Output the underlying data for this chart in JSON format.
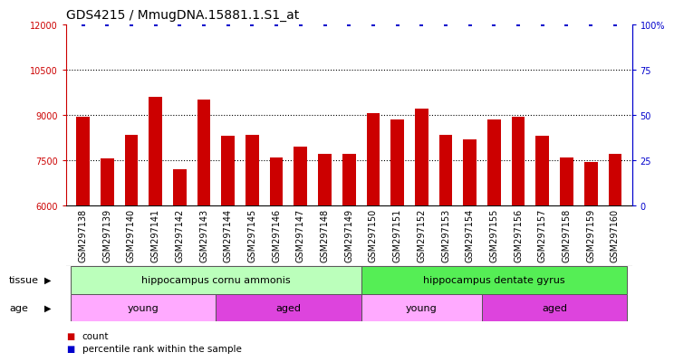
{
  "title": "GDS4215 / MmugDNA.15881.1.S1_at",
  "samples": [
    "GSM297138",
    "GSM297139",
    "GSM297140",
    "GSM297141",
    "GSM297142",
    "GSM297143",
    "GSM297144",
    "GSM297145",
    "GSM297146",
    "GSM297147",
    "GSM297148",
    "GSM297149",
    "GSM297150",
    "GSM297151",
    "GSM297152",
    "GSM297153",
    "GSM297154",
    "GSM297155",
    "GSM297156",
    "GSM297157",
    "GSM297158",
    "GSM297159",
    "GSM297160"
  ],
  "counts": [
    8950,
    7550,
    8350,
    9600,
    7200,
    9500,
    8300,
    8350,
    7600,
    7950,
    7700,
    7700,
    9050,
    8850,
    9200,
    8350,
    8200,
    8850,
    8950,
    8300,
    7600,
    7450,
    7700
  ],
  "percentile": [
    100,
    100,
    100,
    100,
    100,
    100,
    100,
    100,
    100,
    100,
    100,
    100,
    100,
    100,
    100,
    100,
    100,
    100,
    100,
    100,
    100,
    100,
    100
  ],
  "bar_color": "#cc0000",
  "dot_color": "#0000cc",
  "ylim_left": [
    6000,
    12000
  ],
  "ylim_right": [
    0,
    100
  ],
  "yticks_left": [
    6000,
    7500,
    9000,
    10500,
    12000
  ],
  "yticks_right": [
    0,
    25,
    50,
    75,
    100
  ],
  "ytick_labels_right": [
    "0",
    "25",
    "50",
    "75",
    "100%"
  ],
  "grid_values": [
    7500,
    9000,
    10500
  ],
  "tissue_groups": [
    {
      "label": "hippocampus cornu ammonis",
      "start": 0,
      "end": 12,
      "color": "#bbffbb"
    },
    {
      "label": "hippocampus dentate gyrus",
      "start": 12,
      "end": 23,
      "color": "#55ee55"
    }
  ],
  "age_groups": [
    {
      "label": "young",
      "start": 0,
      "end": 6,
      "color": "#ffaaff"
    },
    {
      "label": "aged",
      "start": 6,
      "end": 12,
      "color": "#dd44dd"
    },
    {
      "label": "young",
      "start": 12,
      "end": 17,
      "color": "#ffaaff"
    },
    {
      "label": "aged",
      "start": 17,
      "end": 23,
      "color": "#dd44dd"
    }
  ],
  "bg_color": "#ffffff",
  "plot_bg_color": "#ffffff",
  "axis_color_left": "#cc0000",
  "axis_color_right": "#0000cc",
  "title_fontsize": 10,
  "tick_fontsize": 7,
  "label_fontsize": 8,
  "bar_width": 0.55,
  "xticklabel_bg": "#dddddd"
}
